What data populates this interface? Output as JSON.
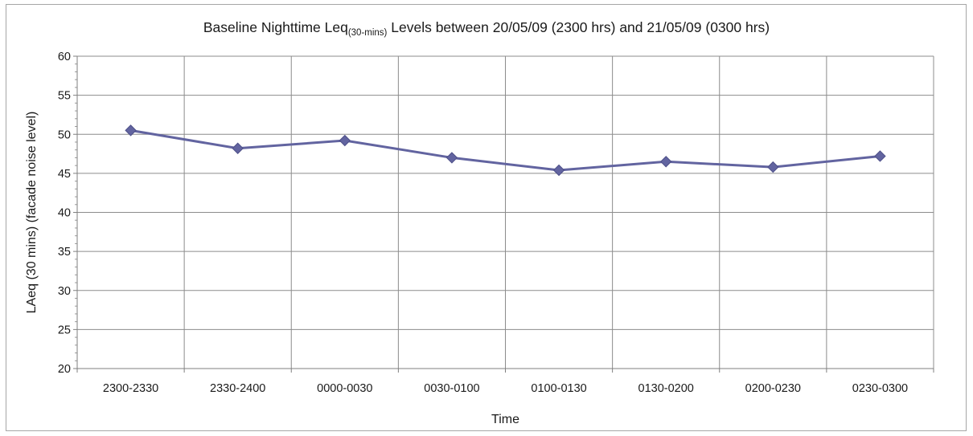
{
  "chart_data": {
    "type": "line",
    "title_main": "Baseline Nighttime Leq",
    "title_sub": "(30-mins)",
    "title_rest": " Levels between 20/05/09 (2300 hrs) and 21/05/09 (0300 hrs)",
    "xlabel": "Time",
    "ylabel": "LAeq (30 mins) (facade noise level)",
    "categories": [
      "2300-2330",
      "2330-2400",
      "0000-0030",
      "0030-0100",
      "0100-0130",
      "0130-0200",
      "0200-0230",
      "0230-0300"
    ],
    "series": [
      {
        "values": [
          50.5,
          48.2,
          49.2,
          47.0,
          45.4,
          46.5,
          45.8,
          47.2
        ]
      }
    ],
    "ylim": [
      20,
      60
    ],
    "yticks": [
      20,
      25,
      30,
      35,
      40,
      45,
      50,
      55,
      60
    ],
    "grid": true,
    "legend": "none",
    "line_color": "#6264a0",
    "grid_color": "#8c8c8c"
  }
}
